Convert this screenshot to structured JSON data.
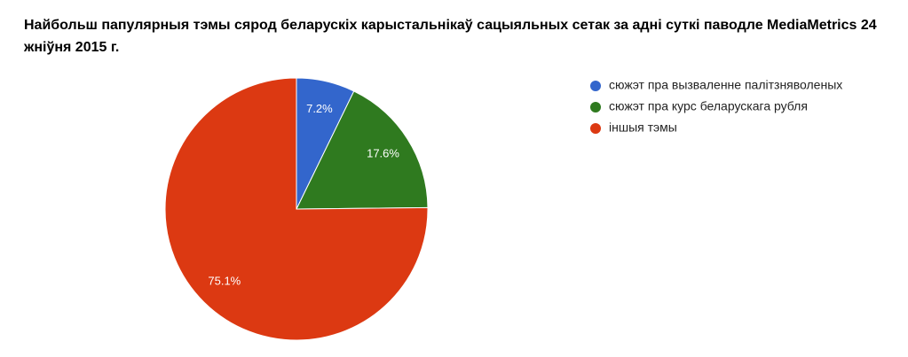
{
  "chart_data": {
    "type": "pie",
    "title": "Найбольш папулярныя тэмы сярод беларускіх карыстальнікаў сацыяльных сетак за адні суткі паводле MediaMetrics 24 жніўня 2015 г.",
    "categories": [
      "сюжэт пра вызваленне палітзняволеных",
      "сюжэт пра курс беларускага рубля",
      "іншыя тэмы"
    ],
    "values": [
      7.2,
      17.6,
      75.1
    ],
    "value_labels": [
      "7.2%",
      "17.6%",
      "75.1%"
    ],
    "colors": [
      "#3366cc",
      "#2f7a1f",
      "#dc3912"
    ],
    "legend": "right"
  }
}
